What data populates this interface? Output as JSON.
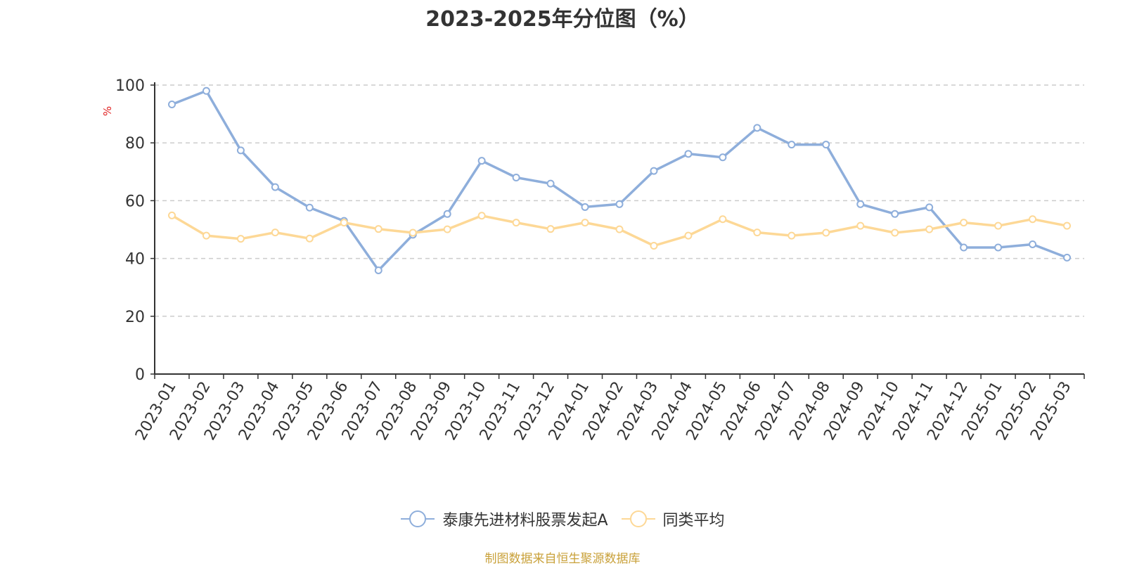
{
  "chart_data": {
    "type": "line",
    "title": "2023-2025年分位图（%）",
    "ylabel": "%",
    "xlabel": "",
    "ylim": [
      0,
      100
    ],
    "yticks": [
      0,
      20,
      40,
      60,
      80,
      100
    ],
    "grid": true,
    "legend_position": "bottom-center",
    "categories": [
      "2023-01",
      "2023-02",
      "2023-03",
      "2023-04",
      "2023-05",
      "2023-06",
      "2023-07",
      "2023-08",
      "2023-09",
      "2023-10",
      "2023-11",
      "2023-12",
      "2024-01",
      "2024-02",
      "2024-03",
      "2024-04",
      "2024-05",
      "2024-06",
      "2024-07",
      "2024-08",
      "2024-09",
      "2024-10",
      "2024-11",
      "2024-12",
      "2025-01",
      "2025-02",
      "2025-03"
    ],
    "series": [
      {
        "name": "泰康先进材料股票发起A",
        "color": "#8eaedb",
        "values": [
          93.3,
          98.0,
          77.4,
          64.7,
          57.6,
          53.0,
          35.9,
          48.2,
          55.4,
          73.8,
          68.0,
          65.9,
          57.8,
          58.8,
          70.3,
          76.2,
          75.0,
          85.2,
          79.4,
          79.4,
          58.8,
          55.4,
          57.7,
          43.8,
          43.8,
          44.9,
          40.3
        ]
      },
      {
        "name": "同类平均",
        "color": "#fdd896",
        "values": [
          54.9,
          47.9,
          46.8,
          49.0,
          46.9,
          52.4,
          50.2,
          48.9,
          50.1,
          54.8,
          52.4,
          50.2,
          52.4,
          50.1,
          44.4,
          47.9,
          53.6,
          49.0,
          47.9,
          48.9,
          51.3,
          48.9,
          50.1,
          52.4,
          51.3,
          53.6,
          51.3
        ]
      }
    ]
  },
  "footer": {
    "source_text": "制图数据来自恒生聚源数据库"
  }
}
